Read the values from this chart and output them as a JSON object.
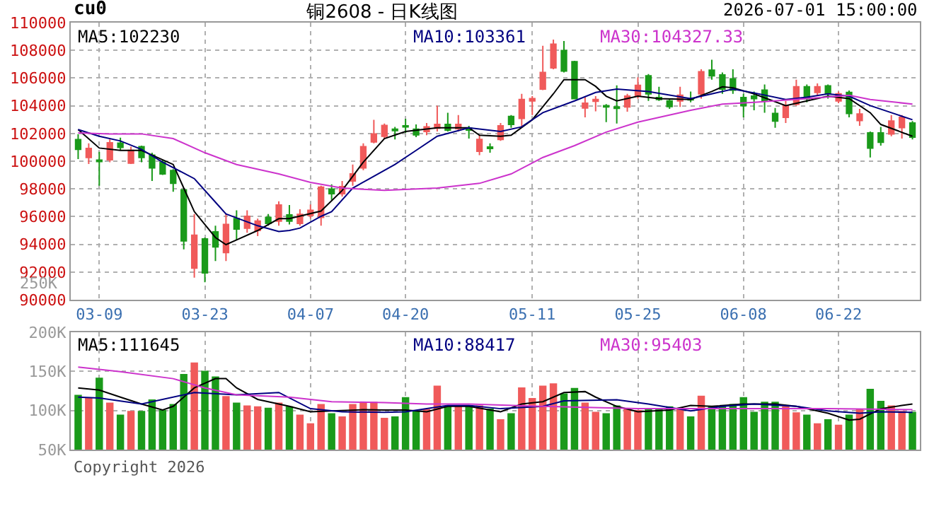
{
  "chart_data": [
    {
      "type": "candlestick",
      "title": "铜2608 - 日K线图",
      "annotations": [
        "cu0",
        "2026-07-01 15:00:00"
      ],
      "categories": [
        null,
        null,
        "03-09",
        null,
        null,
        null,
        null,
        null,
        null,
        null,
        null,
        null,
        "03-23",
        null,
        null,
        null,
        null,
        null,
        null,
        null,
        null,
        null,
        "04-07",
        null,
        null,
        null,
        null,
        null,
        null,
        null,
        null,
        "04-20",
        null,
        null,
        null,
        null,
        null,
        null,
        null,
        null,
        null,
        null,
        null,
        "05-11",
        null,
        null,
        null,
        null,
        null,
        null,
        null,
        null,
        null,
        "05-25",
        null,
        null,
        null,
        null,
        null,
        null,
        null,
        null,
        null,
        "06-08",
        null,
        null,
        null,
        null,
        null,
        null,
        null,
        null,
        "06-22",
        null,
        null,
        null,
        null,
        null,
        null,
        null
      ],
      "ohlc": [
        [
          101550,
          101950,
          100150,
          100850
        ],
        [
          100270,
          101290,
          99800,
          100920
        ],
        [
          100070,
          100680,
          98230,
          99970
        ],
        [
          100100,
          101570,
          99930,
          101330
        ],
        [
          101300,
          101700,
          100780,
          100990
        ],
        [
          99860,
          101050,
          99800,
          100780
        ],
        [
          101050,
          101120,
          99930,
          100270
        ],
        [
          100440,
          100610,
          98570,
          99520
        ],
        [
          99930,
          100100,
          99010,
          99080
        ],
        [
          99320,
          99420,
          97790,
          98400
        ],
        [
          97930,
          98060,
          93640,
          94250
        ],
        [
          92280,
          96190,
          91600,
          94660
        ],
        [
          94390,
          94490,
          91260,
          91940
        ],
        [
          94900,
          95340,
          92790,
          93810
        ],
        [
          93400,
          96190,
          92790,
          95440
        ],
        [
          95850,
          96460,
          94320,
          95100
        ],
        [
          95170,
          96460,
          94830,
          96020
        ],
        [
          95000,
          95850,
          94590,
          95680
        ],
        [
          95950,
          96190,
          95340,
          95510
        ],
        [
          95680,
          97110,
          95340,
          96840
        ],
        [
          96120,
          96840,
          95440,
          95680
        ],
        [
          95510,
          96530,
          95340,
          96160
        ],
        [
          96090,
          96870,
          95850,
          96460
        ],
        [
          95950,
          98230,
          95340,
          98130
        ],
        [
          97990,
          98330,
          97210,
          97650
        ],
        [
          97650,
          98570,
          97450,
          98160
        ],
        [
          98570,
          99760,
          98230,
          99080
        ],
        [
          99520,
          101290,
          99350,
          101050
        ],
        [
          101390,
          102990,
          101290,
          101970
        ],
        [
          101800,
          102720,
          101630,
          102580
        ],
        [
          102310,
          102480,
          101570,
          102210
        ],
        [
          102550,
          103060,
          102040,
          102480
        ],
        [
          102310,
          102650,
          101730,
          101900
        ],
        [
          102140,
          102750,
          101870,
          102480
        ],
        [
          102380,
          104010,
          102140,
          102650
        ],
        [
          102650,
          103500,
          102140,
          102240
        ],
        [
          102350,
          103330,
          102140,
          102650
        ],
        [
          102380,
          102550,
          101630,
          102240
        ],
        [
          100720,
          101900,
          100440,
          101570
        ],
        [
          101020,
          101290,
          100610,
          100920
        ],
        [
          101570,
          102750,
          101470,
          102550
        ],
        [
          103230,
          103330,
          102410,
          102650
        ],
        [
          103090,
          104860,
          102480,
          104450
        ],
        [
          104350,
          104690,
          103330,
          104520
        ],
        [
          105210,
          108330,
          105130,
          106400
        ],
        [
          106740,
          108780,
          106630,
          108440
        ],
        [
          107990,
          108670,
          106400,
          106500
        ],
        [
          107180,
          107250,
          104460,
          104520
        ],
        [
          103840,
          104690,
          103160,
          104180
        ],
        [
          104320,
          104690,
          103600,
          104450
        ],
        [
          104010,
          104120,
          102820,
          103910
        ],
        [
          103910,
          105470,
          102720,
          103810
        ],
        [
          103910,
          104860,
          103570,
          104690
        ],
        [
          104690,
          106060,
          104520,
          105470
        ],
        [
          106160,
          106290,
          104350,
          104860
        ],
        [
          104590,
          105370,
          104350,
          104450
        ],
        [
          104350,
          104520,
          103770,
          103940
        ],
        [
          104350,
          105370,
          103910,
          104760
        ],
        [
          104520,
          105030,
          104250,
          104420
        ],
        [
          104860,
          106630,
          104520,
          106460
        ],
        [
          106570,
          107320,
          105880,
          106160
        ],
        [
          106230,
          106400,
          104860,
          105210
        ],
        [
          105950,
          106630,
          104860,
          105130
        ],
        [
          104590,
          104860,
          103160,
          104010
        ],
        [
          104690,
          105030,
          103670,
          104520
        ],
        [
          105130,
          105540,
          103500,
          104350
        ],
        [
          103440,
          103840,
          102410,
          102890
        ],
        [
          103160,
          104350,
          102750,
          104010
        ],
        [
          104110,
          105880,
          104010,
          105370
        ],
        [
          105370,
          105540,
          104250,
          104520
        ],
        [
          104960,
          105610,
          104690,
          105370
        ],
        [
          105440,
          105540,
          104520,
          104860
        ],
        [
          104350,
          105030,
          104180,
          104860
        ],
        [
          104960,
          105100,
          103160,
          103440
        ],
        [
          102930,
          103770,
          102550,
          103400
        ],
        [
          102040,
          102140,
          100270,
          100950
        ],
        [
          102040,
          102480,
          101120,
          101360
        ],
        [
          101970,
          103330,
          101800,
          102890
        ],
        [
          102420,
          103330,
          101630,
          103160
        ],
        [
          102750,
          102890,
          101570,
          101730
        ]
      ],
      "colors": [
        "#1a9a1a",
        "#f05a5a",
        "#1a9a1a",
        "#f05a5a",
        "#1a9a1a",
        "#f05a5a",
        "#1a9a1a",
        "#1a9a1a",
        "#1a9a1a",
        "#1a9a1a",
        "#1a9a1a",
        "#f05a5a",
        "#1a9a1a",
        "#1a9a1a",
        "#f05a5a",
        "#1a9a1a",
        "#f05a5a",
        "#f05a5a",
        "#1a9a1a",
        "#f05a5a",
        "#1a9a1a",
        "#f05a5a",
        "#f05a5a",
        "#f05a5a",
        "#1a9a1a",
        "#f05a5a",
        "#f05a5a",
        "#f05a5a",
        "#f05a5a",
        "#f05a5a",
        "#1a9a1a",
        "#1a9a1a",
        "#1a9a1a",
        "#f05a5a",
        "#f05a5a",
        "#1a9a1a",
        "#f05a5a",
        "#1a9a1a",
        "#f05a5a",
        "#1a9a1a",
        "#f05a5a",
        "#1a9a1a",
        "#f05a5a",
        "#f05a5a",
        "#f05a5a",
        "#f05a5a",
        "#1a9a1a",
        "#1a9a1a",
        "#f05a5a",
        "#f05a5a",
        "#1a9a1a",
        "#1a9a1a",
        "#f05a5a",
        "#f05a5a",
        "#1a9a1a",
        "#1a9a1a",
        "#1a9a1a",
        "#f05a5a",
        "#1a9a1a",
        "#f05a5a",
        "#1a9a1a",
        "#1a9a1a",
        "#1a9a1a",
        "#1a9a1a",
        "#1a9a1a",
        "#1a9a1a",
        "#1a9a1a",
        "#f05a5a",
        "#f05a5a",
        "#1a9a1a",
        "#f05a5a",
        "#1a9a1a",
        "#f05a5a",
        "#1a9a1a",
        "#f05a5a",
        "#1a9a1a",
        "#1a9a1a",
        "#f05a5a",
        "#f05a5a",
        "#1a9a1a"
      ],
      "series": [
        {
          "name": "MA5:102230",
          "type": "line",
          "color": "#000000",
          "values": [
            102280,
            null,
            100950,
            null,
            100780,
            null,
            100780,
            100440,
            null,
            99760,
            98060,
            96360,
            null,
            94490,
            93980,
            94320,
            null,
            95000,
            null,
            95850,
            95850,
            null,
            null,
            96400,
            null,
            97890,
            null,
            99930,
            null,
            101630,
            null,
            102140,
            null,
            null,
            102410,
            null,
            null,
            102410,
            101870,
            null,
            101800,
            101870,
            null,
            102990,
            null,
            104860,
            105880,
            null,
            105880,
            105400,
            104690,
            104350,
            null,
            104690,
            null,
            104520,
            null,
            null,
            104450,
            null,
            105030,
            105370,
            105300,
            null,
            104860,
            null,
            null,
            104010,
            null,
            104350,
            null,
            104690,
            null,
            104520,
            null,
            103500,
            102650,
            null,
            null,
            101800
          ]
        },
        {
          "name": "MA10:103361",
          "type": "line",
          "color": "#000080",
          "values": [
            102280,
            null,
            101800,
            null,
            101460,
            null,
            100850,
            null,
            99930,
            null,
            null,
            98740,
            null,
            97040,
            96190,
            null,
            null,
            95340,
            null,
            94930,
            95000,
            95170,
            null,
            96020,
            96360,
            null,
            98060,
            null,
            null,
            null,
            99760,
            null,
            100780,
            null,
            101800,
            null,
            null,
            102410,
            null,
            null,
            102140,
            null,
            102480,
            null,
            103500,
            null,
            null,
            104350,
            null,
            104960,
            null,
            105200,
            null,
            null,
            105030,
            null,
            null,
            null,
            104520,
            null,
            104860,
            null,
            105200,
            null,
            104930,
            null,
            null,
            104450,
            null,
            104620,
            null,
            104860,
            null,
            104690,
            null,
            104010,
            null,
            103500,
            null,
            102990
          ]
        },
        {
          "name": "MA30:104327.33",
          "type": "line",
          "color": "#cc33cc",
          "values": [
            102040,
            null,
            null,
            101970,
            null,
            null,
            101970,
            null,
            null,
            101630,
            null,
            null,
            100610,
            null,
            null,
            99760,
            null,
            null,
            null,
            99080,
            null,
            null,
            98470,
            null,
            null,
            98060,
            null,
            null,
            null,
            97890,
            null,
            null,
            null,
            null,
            98060,
            null,
            null,
            null,
            98400,
            null,
            null,
            99080,
            null,
            null,
            100270,
            null,
            null,
            101120,
            null,
            null,
            102100,
            null,
            null,
            102820,
            null,
            null,
            null,
            null,
            103670,
            null,
            null,
            104120,
            null,
            null,
            104250,
            null,
            null,
            null,
            null,
            104520,
            null,
            null,
            null,
            104760,
            null,
            104450,
            null,
            null,
            null,
            104120
          ]
        }
      ],
      "ylim": [
        90000,
        110000
      ],
      "yticks": [
        90000,
        92000,
        94000,
        96000,
        98000,
        100000,
        102000,
        104000,
        106000,
        108000,
        110000
      ],
      "grid": true
    },
    {
      "type": "bar",
      "annotations": [
        "250K",
        "Copyright 2026"
      ],
      "categories": [
        null,
        null,
        null,
        null,
        null,
        null,
        null,
        null,
        null,
        null,
        null,
        null,
        null,
        null,
        null,
        null,
        null,
        null,
        null,
        null,
        null,
        null,
        null,
        null,
        null,
        null,
        null,
        null,
        null,
        null,
        null,
        null,
        null,
        null,
        null,
        null,
        null,
        null,
        null,
        null,
        null,
        null,
        null,
        null,
        null,
        null,
        null,
        null,
        null,
        null,
        null,
        null,
        null,
        null,
        null,
        null,
        null,
        null,
        null,
        null,
        null,
        null,
        null,
        null,
        null,
        null,
        null,
        null,
        null,
        null,
        null,
        null,
        null,
        null,
        null,
        null,
        null,
        null,
        null,
        null
      ],
      "values": [
        120100,
        115900,
        141900,
        110100,
        94700,
        99500,
        99500,
        114200,
        100700,
        108300,
        146600,
        161300,
        150700,
        143600,
        118400,
        110100,
        106500,
        105300,
        103600,
        110100,
        105300,
        94700,
        83600,
        108300,
        96500,
        92400,
        108300,
        111300,
        111300,
        90600,
        92400,
        117100,
        99500,
        101900,
        131800,
        105300,
        105300,
        105300,
        106500,
        102300,
        88900,
        96500,
        129500,
        115900,
        131800,
        134800,
        121900,
        128900,
        110100,
        98300,
        96500,
        106500,
        102300,
        100700,
        102300,
        102300,
        105300,
        102300,
        92400,
        118900,
        105300,
        105300,
        108300,
        117100,
        98300,
        111300,
        111300,
        105300,
        97600,
        94700,
        83600,
        88900,
        81800,
        94700,
        102300,
        127700,
        112400,
        106500,
        99500,
        98300
      ],
      "colors": [
        "#1a9a1a",
        "#f05a5a",
        "#1a9a1a",
        "#f05a5a",
        "#1a9a1a",
        "#f05a5a",
        "#1a9a1a",
        "#1a9a1a",
        "#1a9a1a",
        "#1a9a1a",
        "#1a9a1a",
        "#f05a5a",
        "#1a9a1a",
        "#1a9a1a",
        "#f05a5a",
        "#1a9a1a",
        "#f05a5a",
        "#f05a5a",
        "#1a9a1a",
        "#f05a5a",
        "#1a9a1a",
        "#f05a5a",
        "#f05a5a",
        "#f05a5a",
        "#1a9a1a",
        "#f05a5a",
        "#f05a5a",
        "#f05a5a",
        "#f05a5a",
        "#f05a5a",
        "#1a9a1a",
        "#1a9a1a",
        "#1a9a1a",
        "#f05a5a",
        "#f05a5a",
        "#1a9a1a",
        "#f05a5a",
        "#1a9a1a",
        "#f05a5a",
        "#1a9a1a",
        "#f05a5a",
        "#1a9a1a",
        "#f05a5a",
        "#f05a5a",
        "#f05a5a",
        "#f05a5a",
        "#1a9a1a",
        "#1a9a1a",
        "#f05a5a",
        "#f05a5a",
        "#1a9a1a",
        "#1a9a1a",
        "#f05a5a",
        "#f05a5a",
        "#1a9a1a",
        "#1a9a1a",
        "#1a9a1a",
        "#f05a5a",
        "#1a9a1a",
        "#f05a5a",
        "#1a9a1a",
        "#1a9a1a",
        "#1a9a1a",
        "#1a9a1a",
        "#1a9a1a",
        "#1a9a1a",
        "#1a9a1a",
        "#f05a5a",
        "#f05a5a",
        "#1a9a1a",
        "#f05a5a",
        "#1a9a1a",
        "#f05a5a",
        "#1a9a1a",
        "#f05a5a",
        "#1a9a1a",
        "#1a9a1a",
        "#f05a5a",
        "#f05a5a",
        "#1a9a1a"
      ],
      "series": [
        {
          "name": "MA5:111645",
          "type": "line",
          "color": "#000000",
          "values": [
            128900,
            null,
            126100,
            null,
            117100,
            null,
            108300,
            null,
            100700,
            105300,
            null,
            128900,
            null,
            140700,
            140700,
            128900,
            null,
            114200,
            null,
            null,
            105300,
            null,
            98300,
            null,
            99500,
            null,
            null,
            101000,
            null,
            100700,
            null,
            100700,
            null,
            98300,
            null,
            105300,
            null,
            105300,
            null,
            null,
            98300,
            null,
            108300,
            null,
            111300,
            null,
            123000,
            null,
            124200,
            117100,
            null,
            105300,
            null,
            98300,
            null,
            null,
            100700,
            null,
            106500,
            null,
            105300,
            null,
            null,
            108300,
            null,
            null,
            108300,
            null,
            105300,
            null,
            null,
            96500,
            null,
            87700,
            88900,
            null,
            102300,
            null,
            106500,
            108300
          ]
        },
        {
          "name": "MA10:88417",
          "type": "line",
          "color": "#000080",
          "values": [
            117100,
            null,
            116000,
            null,
            null,
            null,
            108300,
            null,
            null,
            null,
            null,
            123000,
            null,
            null,
            null,
            120100,
            null,
            null,
            null,
            123000,
            null,
            null,
            102300,
            null,
            null,
            98300,
            null,
            null,
            null,
            97600,
            null,
            98300,
            null,
            null,
            null,
            106500,
            null,
            106500,
            null,
            null,
            102300,
            null,
            null,
            null,
            105300,
            null,
            112400,
            null,
            null,
            null,
            null,
            113600,
            null,
            null,
            108300,
            null,
            null,
            null,
            99500,
            null,
            null,
            105300,
            null,
            null,
            108300,
            null,
            null,
            null,
            105300,
            null,
            null,
            99500,
            null,
            null,
            96500,
            null,
            98300,
            null,
            null,
            97600
          ]
        },
        {
          "name": "MA30:95403",
          "type": "line",
          "color": "#cc33cc",
          "values": [
            155500,
            null,
            null,
            null,
            149600,
            null,
            null,
            null,
            null,
            140700,
            null,
            null,
            128900,
            null,
            null,
            120100,
            null,
            null,
            null,
            null,
            117100,
            null,
            null,
            null,
            111300,
            null,
            null,
            null,
            null,
            110100,
            null,
            null,
            null,
            108300,
            null,
            null,
            null,
            108300,
            null,
            null,
            null,
            null,
            null,
            null,
            105300,
            null,
            null,
            null,
            null,
            null,
            null,
            null,
            null,
            102300,
            null,
            null,
            null,
            null,
            null,
            null,
            null,
            null,
            102300,
            null,
            null,
            null,
            null,
            null,
            null,
            null,
            null,
            102300,
            null,
            null,
            null,
            null,
            null,
            null,
            null,
            101100
          ]
        }
      ],
      "ylim": [
        50000,
        200000
      ],
      "yticks": [
        {
          "value": 50000,
          "label": "50K"
        },
        {
          "value": 100000,
          "label": "100K"
        },
        {
          "value": 150000,
          "label": "150K"
        },
        {
          "value": 200000,
          "label": "200K"
        }
      ],
      "grid": true,
      "tick_labels": "y"
    }
  ]
}
